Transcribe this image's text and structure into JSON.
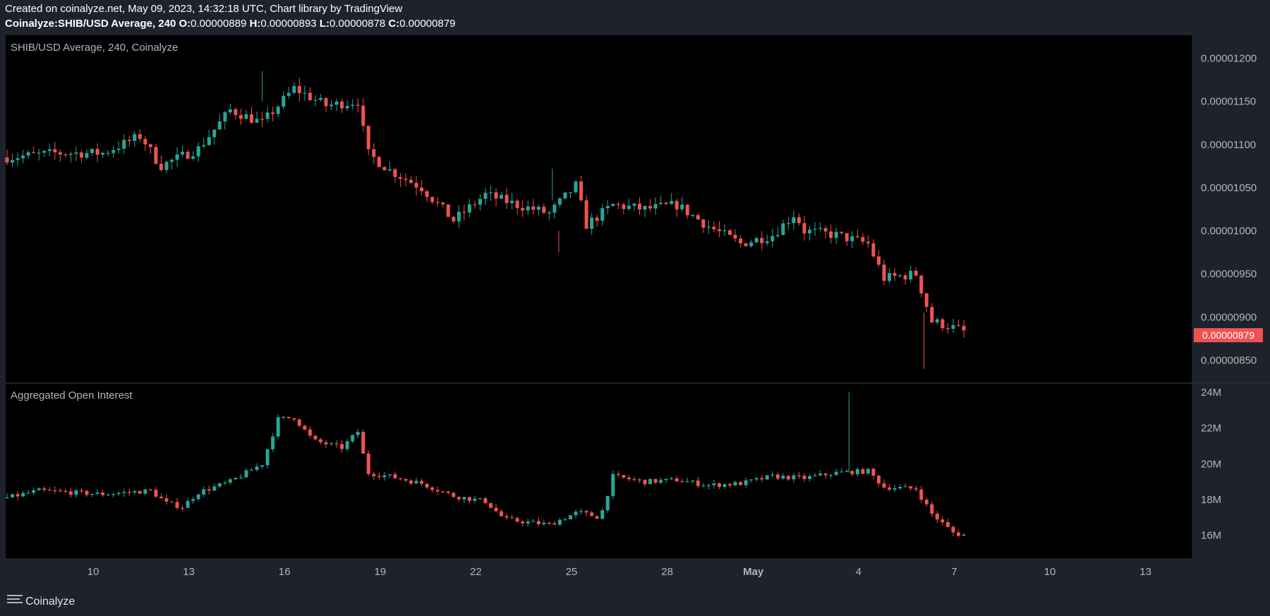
{
  "header": {
    "line1": "Created on coinalyze.net, May 09, 2023, 14:32:18 UTC, Chart library by TradingView",
    "symbol": "Coinalyze:SHIB/USD Average, 240",
    "o_label": "O:",
    "o_value": "0.00000889",
    "h_label": "H:",
    "h_value": "0.00000893",
    "l_label": "L:",
    "l_value": "0.00000878",
    "c_label": "C:",
    "c_value": "0.00000879"
  },
  "brand": {
    "name": "Coinalyze",
    "icon": "menu-lines-icon"
  },
  "colors": {
    "up": "#26a69a",
    "down": "#ef5350",
    "background": "#000000",
    "chrome": "#1e222d",
    "text": "#b2b5be"
  },
  "chart_data": [
    {
      "type": "candlestick",
      "title": "SHIB/USD Average, 240, Coinalyze",
      "price_tag": "0.00000879",
      "y_ticks": [
        "0.00001200",
        "0.00001150",
        "0.00001100",
        "0.00001050",
        "0.00001000",
        "0.00000950",
        "0.00000900",
        "0.00000850"
      ],
      "ylim": [
        8.3e-06,
        1.22e-05
      ],
      "anchors": [
        {
          "x": 0,
          "y": 1.085e-05
        },
        {
          "x": 1.5,
          "y": 1.09e-05
        },
        {
          "x": 3,
          "y": 1.09e-05
        },
        {
          "x": 4.2,
          "y": 1.11e-05
        },
        {
          "x": 4.8,
          "y": 1.075e-05
        },
        {
          "x": 6,
          "y": 1.095e-05
        },
        {
          "x": 7,
          "y": 1.14e-05
        },
        {
          "x": 8,
          "y": 1.125e-05
        },
        {
          "x": 8.5,
          "y": 1.145e-05
        },
        {
          "x": 9,
          "y": 1.165e-05
        },
        {
          "x": 10,
          "y": 1.145e-05
        },
        {
          "x": 11,
          "y": 1.15e-05
        },
        {
          "x": 11.3,
          "y": 1.09e-05
        },
        {
          "x": 12,
          "y": 1.07e-05
        },
        {
          "x": 13,
          "y": 1.05e-05
        },
        {
          "x": 14,
          "y": 1.012e-05
        },
        {
          "x": 15,
          "y": 1.042e-05
        },
        {
          "x": 16,
          "y": 1.03e-05
        },
        {
          "x": 17,
          "y": 1.02e-05
        },
        {
          "x": 17.9,
          "y": 1.055e-05
        },
        {
          "x": 18.1,
          "y": 1.005e-05
        },
        {
          "x": 19,
          "y": 1.03e-05
        },
        {
          "x": 20,
          "y": 1.025e-05
        },
        {
          "x": 21,
          "y": 1.03e-05
        },
        {
          "x": 22,
          "y": 1.005e-05
        },
        {
          "x": 23,
          "y": 9.85e-06
        },
        {
          "x": 24,
          "y": 9.95e-06
        },
        {
          "x": 24.7,
          "y": 1.02e-05
        },
        {
          "x": 25,
          "y": 1e-05
        },
        {
          "x": 26,
          "y": 9.95e-06
        },
        {
          "x": 27,
          "y": 9.85e-06
        },
        {
          "x": 27.5,
          "y": 9.45e-06
        },
        {
          "x": 28.5,
          "y": 9.5e-06
        },
        {
          "x": 29,
          "y": 8.95e-06
        },
        {
          "x": 29.5,
          "y": 8.9e-06
        },
        {
          "x": 30.3,
          "y": 8.79e-06
        }
      ]
    },
    {
      "type": "candlestick",
      "title": "Aggregated Open Interest",
      "y_ticks": [
        "24M",
        "22M",
        "20M",
        "18M",
        "16M"
      ],
      "ylim": [
        15000000,
        24200000
      ],
      "anchors": [
        {
          "x": 0,
          "y": 18100000
        },
        {
          "x": 1,
          "y": 18500000
        },
        {
          "x": 2,
          "y": 18400000
        },
        {
          "x": 3,
          "y": 18300000
        },
        {
          "x": 4.5,
          "y": 18500000
        },
        {
          "x": 5,
          "y": 17800000
        },
        {
          "x": 5.5,
          "y": 17600000
        },
        {
          "x": 6,
          "y": 18400000
        },
        {
          "x": 7,
          "y": 19000000
        },
        {
          "x": 8,
          "y": 20000000
        },
        {
          "x": 8.5,
          "y": 22500000
        },
        {
          "x": 9,
          "y": 22600000
        },
        {
          "x": 9.6,
          "y": 21300000
        },
        {
          "x": 10.5,
          "y": 20900000
        },
        {
          "x": 11,
          "y": 21800000
        },
        {
          "x": 11.3,
          "y": 19500000
        },
        {
          "x": 12,
          "y": 19300000
        },
        {
          "x": 13,
          "y": 18900000
        },
        {
          "x": 14,
          "y": 18200000
        },
        {
          "x": 15,
          "y": 17900000
        },
        {
          "x": 15.6,
          "y": 16900000
        },
        {
          "x": 16,
          "y": 16800000
        },
        {
          "x": 17,
          "y": 16600000
        },
        {
          "x": 17.9,
          "y": 17300000
        },
        {
          "x": 18.6,
          "y": 17000000
        },
        {
          "x": 19,
          "y": 19300000
        },
        {
          "x": 20,
          "y": 19000000
        },
        {
          "x": 21,
          "y": 19100000
        },
        {
          "x": 22,
          "y": 18800000
        },
        {
          "x": 23,
          "y": 18900000
        },
        {
          "x": 24,
          "y": 19300000
        },
        {
          "x": 25,
          "y": 19200000
        },
        {
          "x": 26,
          "y": 19500000
        },
        {
          "x": 27,
          "y": 19600000
        },
        {
          "x": 27.5,
          "y": 18700000
        },
        {
          "x": 28.5,
          "y": 18600000
        },
        {
          "x": 29,
          "y": 17200000
        },
        {
          "x": 29.7,
          "y": 16100000
        },
        {
          "x": 30.3,
          "y": 15950000
        }
      ]
    }
  ],
  "x_axis": {
    "labels": [
      "10",
      "13",
      "16",
      "19",
      "22",
      "25",
      "28",
      "May",
      "4",
      "7",
      "10",
      "13"
    ]
  }
}
